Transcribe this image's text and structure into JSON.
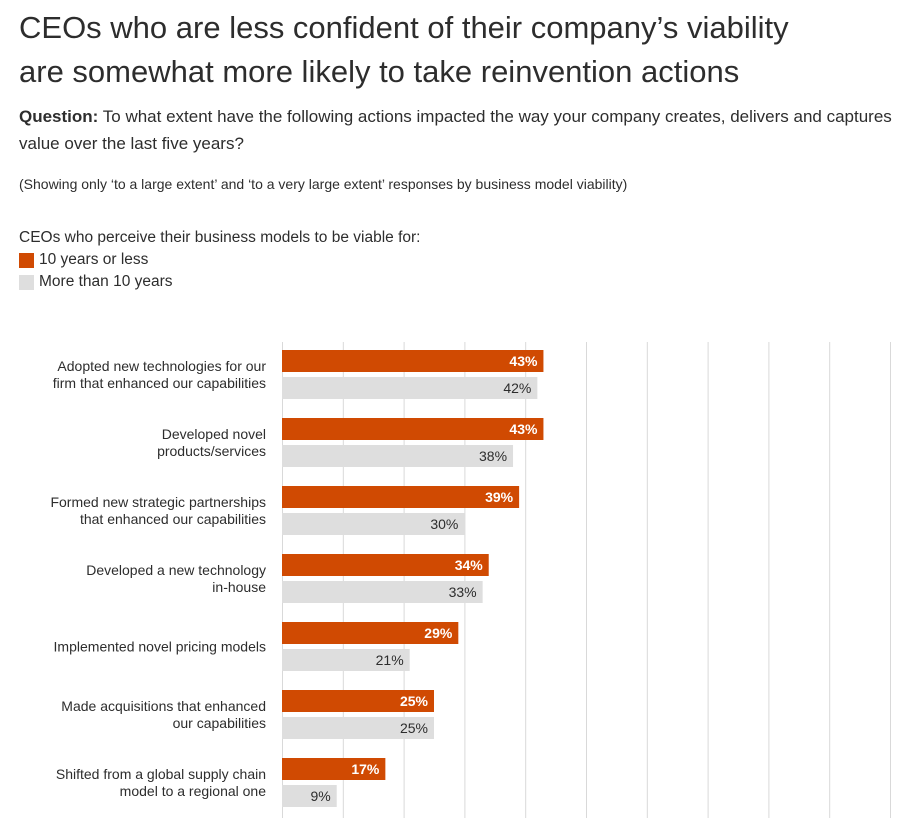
{
  "header": {
    "title_line1": "CEOs who are less confident of their company’s viability",
    "title_line2": "are somewhat more likely to take reinvention actions",
    "question_label": "Question:",
    "question_text": " To what extent have the following actions impacted the way your company creates, delivers and captures value over the last five years?",
    "note": "(Showing only ‘to a large extent’ and ‘to a very large extent’ responses by business model viability)"
  },
  "legend": {
    "heading": "CEOs who perceive their business models to be viable for:"
  },
  "colors": {
    "series1": "#d04a02",
    "series2": "#dedede",
    "grid": "#d9d9d9",
    "text": "#2d2d2d",
    "label_on_dark": "#ffffff",
    "label_on_light": "#2d2d2d"
  },
  "chart_data": {
    "type": "bar",
    "orientation": "horizontal",
    "title": "CEOs who are less confident of their company’s viability are somewhat more likely to take reinvention actions",
    "xlim": [
      0,
      100
    ],
    "grid": true,
    "legend_placement": "top-left",
    "value_suffix": "%",
    "categories": [
      [
        "Adopted new technologies for our",
        "firm that enhanced our capabilities"
      ],
      [
        "Developed novel",
        "products/services"
      ],
      [
        "Formed new strategic partnerships",
        "that enhanced our capabilities"
      ],
      [
        "Developed a new technology",
        "in-house"
      ],
      [
        "Implemented novel pricing models"
      ],
      [
        "Made acquisitions that enhanced",
        "our capabilities"
      ],
      [
        "Shifted from a global supply chain",
        "model to a regional one"
      ]
    ],
    "series": [
      {
        "name": "10 years or less",
        "values": [
          43,
          43,
          39,
          34,
          29,
          25,
          17
        ]
      },
      {
        "name": "More than 10 years",
        "values": [
          42,
          38,
          30,
          33,
          21,
          25,
          9
        ]
      }
    ]
  }
}
